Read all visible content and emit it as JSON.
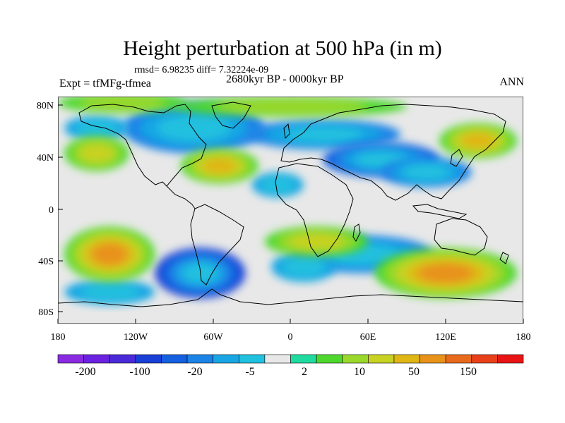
{
  "title": "Height perturbation at 500 hPa (in m)",
  "rmsd_text": "rmsd= 6.98235 diff= 7.32224e-09",
  "expt_text": "Expt = tfMFg-tfmea",
  "period_text": "2680kyr BP - 0000kyr BP",
  "season_text": "ANN",
  "lat_labels": [
    "80N",
    "40N",
    "0",
    "40S",
    "80S"
  ],
  "lon_labels": [
    "180",
    "120W",
    "60W",
    "0",
    "60E",
    "120E",
    "180"
  ],
  "colorbar": {
    "colors": [
      "#8a2be2",
      "#6a22e0",
      "#4a2ad8",
      "#1a3fd6",
      "#1560e0",
      "#1b84e6",
      "#19a6e4",
      "#20c0df",
      "#e8e8e8",
      "#20dba0",
      "#4ed82e",
      "#9ad82c",
      "#c8d222",
      "#e0b614",
      "#e8921a",
      "#e86a1c",
      "#e84018",
      "#e81414"
    ],
    "labels": [
      "-200",
      "-100",
      "-20",
      "-5",
      "2",
      "10",
      "50",
      "150"
    ]
  },
  "chart_data": {
    "type": "heatmap",
    "title": "Height perturbation at 500 hPa (in m)",
    "x_range_deg": [
      -180,
      180
    ],
    "y_range_deg": [
      -90,
      90
    ],
    "ylabels": [
      "80N",
      "40N",
      "0",
      "40S",
      "80S"
    ],
    "xlabels": [
      "180",
      "120W",
      "60W",
      "0",
      "60E",
      "120E",
      "180"
    ],
    "contour_levels": [
      -200,
      -150,
      -100,
      -50,
      -20,
      -10,
      -5,
      -2,
      2,
      5,
      10,
      20,
      50,
      100,
      150,
      200
    ],
    "anomalies": [
      {
        "lon": 25,
        "lat": 60,
        "rx": 60,
        "ry": 12,
        "value": -10
      },
      {
        "lon": 70,
        "lat": 40,
        "rx": 45,
        "ry": 14,
        "value": -20
      },
      {
        "lon": 105,
        "lat": 30,
        "rx": 35,
        "ry": 12,
        "value": -12
      },
      {
        "lon": -75,
        "lat": 65,
        "rx": 55,
        "ry": 20,
        "value": -12
      },
      {
        "lon": -150,
        "lat": 65,
        "rx": 25,
        "ry": 10,
        "value": -8
      },
      {
        "lon": -10,
        "lat": 20,
        "rx": 20,
        "ry": 10,
        "value": -5
      },
      {
        "lon": -70,
        "lat": -50,
        "rx": 35,
        "ry": 20,
        "value": -60
      },
      {
        "lon": 55,
        "lat": -35,
        "rx": 55,
        "ry": 15,
        "value": -12
      },
      {
        "lon": 10,
        "lat": -45,
        "rx": 25,
        "ry": 12,
        "value": -8
      },
      {
        "lon": -140,
        "lat": -65,
        "rx": 35,
        "ry": 10,
        "value": -8
      },
      {
        "lon": -55,
        "lat": 35,
        "rx": 30,
        "ry": 14,
        "value": 30
      },
      {
        "lon": -150,
        "lat": 45,
        "rx": 25,
        "ry": 14,
        "value": 18
      },
      {
        "lon": -130,
        "lat": 85,
        "rx": 50,
        "ry": 8,
        "value": 8
      },
      {
        "lon": 0,
        "lat": 82,
        "rx": 90,
        "ry": 8,
        "value": 6
      },
      {
        "lon": 145,
        "lat": 55,
        "rx": 30,
        "ry": 14,
        "value": 20
      },
      {
        "lon": 120,
        "lat": -50,
        "rx": 55,
        "ry": 20,
        "value": 60
      },
      {
        "lon": -140,
        "lat": -35,
        "rx": 35,
        "ry": 22,
        "value": 60
      },
      {
        "lon": 20,
        "lat": -25,
        "rx": 40,
        "ry": 12,
        "value": 10
      }
    ]
  }
}
